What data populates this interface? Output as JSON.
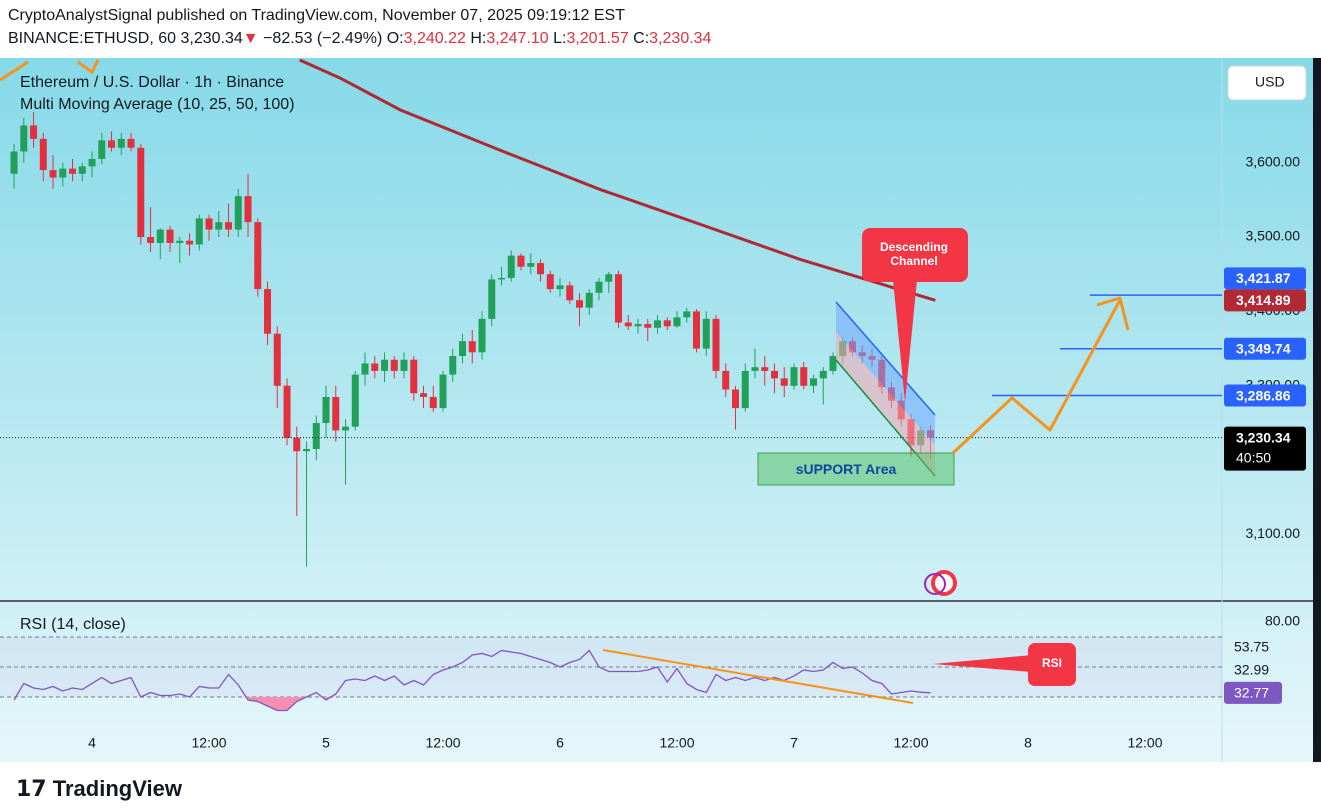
{
  "header": {
    "publisher_line": "CryptoAnalystSignal published on TradingView.com, November 07, 2025 09:19:12 EST",
    "symbol": "BINANCE:ETHUSD, 60",
    "last": "3,230.34",
    "arrow": "▼",
    "change": "−82.53 (−2.49%)",
    "o_label": "O:",
    "o": "3,240.22",
    "h_label": "H:",
    "h": "3,247.10",
    "l_label": "L:",
    "l": "3,201.57",
    "c_label": "C:",
    "c": "3,230.34"
  },
  "chart_data": [
    {
      "type": "candlestick",
      "title": "Ethereum / U.S. Dollar · 1h · Binance",
      "indicator": "Multi Moving Average (10, 25, 50, 100)",
      "currency": "USD",
      "up_color": "#22a05a",
      "down_color": "#e2303e",
      "ohlc": [
        [
          3585,
          3625,
          3565,
          3615
        ],
        [
          3615,
          3660,
          3600,
          3650
        ],
        [
          3650,
          3668,
          3620,
          3632
        ],
        [
          3632,
          3640,
          3575,
          3590
        ],
        [
          3590,
          3610,
          3565,
          3580
        ],
        [
          3580,
          3600,
          3568,
          3592
        ],
        [
          3592,
          3605,
          3575,
          3585
        ],
        [
          3585,
          3600,
          3575,
          3595
        ],
        [
          3595,
          3615,
          3580,
          3605
        ],
        [
          3605,
          3640,
          3598,
          3630
        ],
        [
          3630,
          3642,
          3615,
          3620
        ],
        [
          3620,
          3640,
          3610,
          3632
        ],
        [
          3632,
          3640,
          3615,
          3620
        ],
        [
          3620,
          3625,
          3490,
          3500
        ],
        [
          3500,
          3540,
          3480,
          3492
        ],
        [
          3492,
          3512,
          3470,
          3510
        ],
        [
          3510,
          3515,
          3480,
          3492
        ],
        [
          3492,
          3500,
          3465,
          3495
        ],
        [
          3495,
          3505,
          3475,
          3490
        ],
        [
          3490,
          3530,
          3482,
          3525
        ],
        [
          3525,
          3530,
          3495,
          3510
        ],
        [
          3510,
          3535,
          3500,
          3520
        ],
        [
          3520,
          3545,
          3500,
          3510
        ],
        [
          3510,
          3565,
          3500,
          3555
        ],
        [
          3555,
          3585,
          3500,
          3520
        ],
        [
          3520,
          3525,
          3420,
          3430
        ],
        [
          3430,
          3440,
          3355,
          3370
        ],
        [
          3370,
          3380,
          3270,
          3300
        ],
        [
          3300,
          3310,
          3220,
          3230
        ],
        [
          3230,
          3245,
          3125,
          3212
        ],
        [
          3212,
          3225,
          3057,
          3215
        ],
        [
          3215,
          3260,
          3200,
          3250
        ],
        [
          3250,
          3300,
          3230,
          3285
        ],
        [
          3285,
          3300,
          3225,
          3240
        ],
        [
          3240,
          3255,
          3167,
          3245
        ],
        [
          3245,
          3320,
          3240,
          3315
        ],
        [
          3315,
          3345,
          3300,
          3330
        ],
        [
          3330,
          3340,
          3310,
          3320
        ],
        [
          3320,
          3345,
          3305,
          3335
        ],
        [
          3335,
          3340,
          3310,
          3320
        ],
        [
          3320,
          3345,
          3310,
          3335
        ],
        [
          3335,
          3340,
          3280,
          3290
        ],
        [
          3290,
          3300,
          3270,
          3285
        ],
        [
          3285,
          3300,
          3265,
          3270
        ],
        [
          3270,
          3320,
          3265,
          3315
        ],
        [
          3315,
          3350,
          3305,
          3340
        ],
        [
          3340,
          3370,
          3330,
          3360
        ],
        [
          3360,
          3375,
          3330,
          3345
        ],
        [
          3345,
          3400,
          3335,
          3390
        ],
        [
          3390,
          3450,
          3380,
          3443
        ],
        [
          3443,
          3460,
          3435,
          3445
        ],
        [
          3445,
          3482,
          3440,
          3475
        ],
        [
          3475,
          3478,
          3455,
          3460
        ],
        [
          3460,
          3478,
          3450,
          3465
        ],
        [
          3465,
          3470,
          3440,
          3450
        ],
        [
          3450,
          3455,
          3425,
          3430
        ],
        [
          3430,
          3445,
          3420,
          3435
        ],
        [
          3435,
          3440,
          3410,
          3415
        ],
        [
          3415,
          3425,
          3380,
          3405
        ],
        [
          3405,
          3430,
          3395,
          3425
        ],
        [
          3425,
          3445,
          3415,
          3440
        ],
        [
          3440,
          3453,
          3425,
          3450
        ],
        [
          3450,
          3455,
          3378,
          3385
        ],
        [
          3385,
          3395,
          3375,
          3380
        ],
        [
          3380,
          3390,
          3370,
          3383
        ],
        [
          3383,
          3390,
          3360,
          3378
        ],
        [
          3378,
          3395,
          3370,
          3388
        ],
        [
          3388,
          3392,
          3375,
          3380
        ],
        [
          3380,
          3400,
          3378,
          3392
        ],
        [
          3392,
          3405,
          3385,
          3400
        ],
        [
          3400,
          3403,
          3345,
          3350
        ],
        [
          3350,
          3400,
          3340,
          3390
        ],
        [
          3390,
          3395,
          3310,
          3320
        ],
        [
          3320,
          3330,
          3285,
          3295
        ],
        [
          3295,
          3300,
          3241,
          3270
        ],
        [
          3270,
          3330,
          3265,
          3320
        ],
        [
          3320,
          3350,
          3310,
          3325
        ],
        [
          3325,
          3340,
          3300,
          3320
        ],
        [
          3320,
          3330,
          3290,
          3310
        ],
        [
          3310,
          3325,
          3285,
          3300
        ],
        [
          3300,
          3330,
          3295,
          3325
        ],
        [
          3325,
          3332,
          3295,
          3300
        ],
        [
          3300,
          3315,
          3290,
          3310
        ],
        [
          3310,
          3325,
          3275,
          3320
        ],
        [
          3320,
          3345,
          3315,
          3340
        ],
        [
          3340,
          3365,
          3330,
          3360
        ],
        [
          3360,
          3365,
          3340,
          3345
        ],
        [
          3345,
          3355,
          3330,
          3340
        ],
        [
          3340,
          3350,
          3325,
          3335
        ],
        [
          3335,
          3340,
          3290,
          3298
        ],
        [
          3298,
          3305,
          3270,
          3280
        ],
        [
          3280,
          3290,
          3245,
          3255
        ],
        [
          3255,
          3262,
          3205,
          3220
        ],
        [
          3220,
          3245,
          3210,
          3240
        ],
        [
          3240.22,
          3247.1,
          3201.57,
          3230.34
        ]
      ],
      "last_label": "3,230.34",
      "countdown": "40:50",
      "ma": {
        "color": "#ae2a33",
        "x": [
          29.3,
          33.4,
          39.6,
          49.8,
          60.1,
          70.4,
          80.6,
          90.9,
          94.5
        ],
        "values": [
          3738,
          3714,
          3671,
          3617,
          3564,
          3517,
          3470,
          3429,
          3414.89
        ],
        "last_label": "3,414.89"
      },
      "levels": {
        "color": "#2962ff",
        "values": [
          3421.87,
          3349.74,
          3286.86
        ],
        "value_labels": [
          "3,421.87",
          "3,349.74",
          "3,286.86"
        ]
      },
      "annotations": {
        "channel": "Descending Channel",
        "support": "sUPPORT Area"
      },
      "xlim": [
        -1.44,
        123.9
      ],
      "xticks": [
        {
          "value": 8,
          "label": "4"
        },
        {
          "value": 20,
          "label": "12:00"
        },
        {
          "value": 32,
          "label": "5"
        },
        {
          "value": 44,
          "label": "12:00"
        },
        {
          "value": 56,
          "label": "6"
        },
        {
          "value": 68,
          "label": "12:00"
        },
        {
          "value": 80,
          "label": "7"
        },
        {
          "value": 92,
          "label": "12:00"
        },
        {
          "value": 104,
          "label": "8"
        },
        {
          "value": 116,
          "label": "12:00"
        }
      ],
      "ylim": [
        3012,
        3738
      ],
      "yticks": [
        {
          "value": 3100,
          "label": "3,100.00"
        },
        {
          "value": 3300,
          "label": "3,300.00"
        },
        {
          "value": 3400,
          "label": "3,400.00"
        },
        {
          "value": 3500,
          "label": "3,500.00"
        },
        {
          "value": 3600,
          "label": "3,600.00"
        }
      ]
    },
    {
      "type": "line",
      "title": "RSI (14, close)",
      "color": "#7e57c2",
      "values": [
        28,
        39,
        36,
        35,
        37,
        34,
        36,
        35,
        39,
        43,
        39,
        41,
        43,
        30,
        33,
        31,
        31,
        32,
        30,
        37,
        36,
        36,
        45,
        38,
        28,
        27,
        24,
        21,
        21,
        27,
        30,
        33,
        28,
        32,
        41,
        42,
        41,
        44,
        41,
        44,
        38,
        41,
        38,
        45,
        48,
        50,
        53,
        58,
        59,
        57,
        61,
        60,
        59,
        57,
        55,
        53,
        50,
        53,
        55,
        61,
        50,
        47,
        47,
        47,
        47,
        48,
        50,
        40,
        49,
        39,
        35,
        33,
        45,
        41,
        43,
        41,
        43,
        41,
        43,
        41,
        44,
        48,
        47,
        48,
        53,
        49,
        50,
        46,
        41,
        39,
        32,
        33,
        34,
        33.2,
        32.77
      ],
      "last_label": "32.77",
      "extra_values": [
        53.75,
        32.99
      ],
      "extra_labels": [
        "53.75",
        "32.99"
      ],
      "bands": [
        70,
        50,
        30
      ],
      "callout": "RSI",
      "xlim": [
        -1.44,
        123.9
      ],
      "ylim": [
        8,
        93.3
      ],
      "yticks": [
        {
          "value": 80,
          "label": "80.00"
        }
      ]
    }
  ],
  "footer": {
    "brand": "TradingView"
  }
}
